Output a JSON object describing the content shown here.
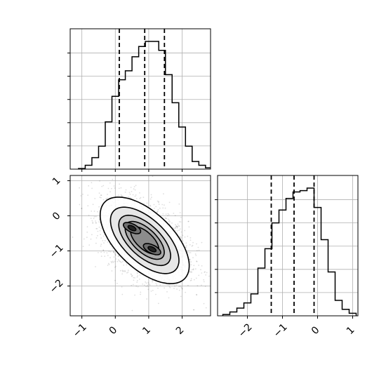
{
  "chart_data": [
    {
      "panel": "marginal-x",
      "type": "histogram",
      "xlim": [
        -1.35,
        2.85
      ],
      "bin_edges": [
        -1.1,
        -0.9,
        -0.7,
        -0.5,
        -0.3,
        -0.1,
        0.1,
        0.3,
        0.5,
        0.7,
        0.9,
        1.1,
        1.3,
        1.5,
        1.7,
        1.9,
        2.1,
        2.3,
        2.5,
        2.7,
        2.9
      ],
      "counts": [
        0.5,
        3,
        9,
        18,
        37,
        57,
        70,
        77,
        88,
        96,
        100,
        100,
        93,
        74,
        52,
        33,
        18,
        6,
        3,
        1
      ],
      "quantile_lines": [
        0.12,
        0.88,
        1.47
      ],
      "x_ticks": [
        "−1",
        "0",
        "1",
        "2"
      ],
      "x_tick_values": [
        -1,
        0,
        1,
        2
      ],
      "grid": true
    },
    {
      "panel": "marginal-y",
      "type": "histogram",
      "xlim": [
        -2.85,
        1.15
      ],
      "bin_edges": [
        -2.7,
        -2.5,
        -2.3,
        -2.1,
        -1.9,
        -1.7,
        -1.5,
        -1.3,
        -1.1,
        -0.9,
        -0.7,
        -0.5,
        -0.3,
        -0.1,
        0.1,
        0.3,
        0.5,
        0.7,
        0.9,
        1.1
      ],
      "counts": [
        1,
        3,
        6,
        10,
        17,
        37,
        52,
        72,
        82,
        91,
        96,
        97,
        99,
        84,
        59,
        34,
        12,
        5,
        2
      ],
      "quantile_lines": [
        -1.32,
        -0.67,
        -0.1
      ],
      "x_ticks": [
        "−2",
        "−1",
        "0",
        "1"
      ],
      "x_tick_values": [
        -2,
        -1,
        0,
        1
      ],
      "grid": true
    },
    {
      "panel": "joint",
      "type": "scatter-contour",
      "xlim": [
        -1.35,
        2.85
      ],
      "ylim": [
        -2.85,
        1.15
      ],
      "mean": [
        0.88,
        -0.7
      ],
      "std": [
        0.65,
        0.6
      ],
      "corr": -0.45,
      "modes": [
        [
          0.5,
          -0.35
        ],
        [
          1.1,
          -0.95
        ]
      ],
      "x_ticks": [
        "−1",
        "0",
        "1",
        "2"
      ],
      "x_tick_values": [
        -1,
        0,
        1,
        2
      ],
      "y_ticks": [
        "1",
        "0",
        "−1",
        "−2"
      ],
      "y_tick_values": [
        1,
        0,
        -1,
        -2
      ],
      "grid": true
    }
  ]
}
